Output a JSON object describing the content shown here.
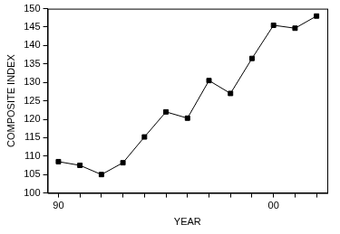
{
  "chart_data": {
    "type": "line",
    "x_label": "YEAR",
    "y_label": "COMPOSITE INDEX",
    "categories": [
      "90",
      null,
      null,
      null,
      null,
      null,
      null,
      null,
      null,
      null,
      "00",
      null,
      null
    ],
    "values": [
      108.5,
      107.5,
      105,
      108.2,
      115.2,
      122,
      120.3,
      130.5,
      127,
      136.5,
      145.5,
      144.7,
      148
    ],
    "color": "#000000",
    "marker": "square",
    "ylim": [
      100,
      150
    ],
    "yticks": [
      100,
      105,
      110,
      115,
      120,
      125,
      130,
      135,
      140,
      145,
      150
    ],
    "grid": false
  }
}
